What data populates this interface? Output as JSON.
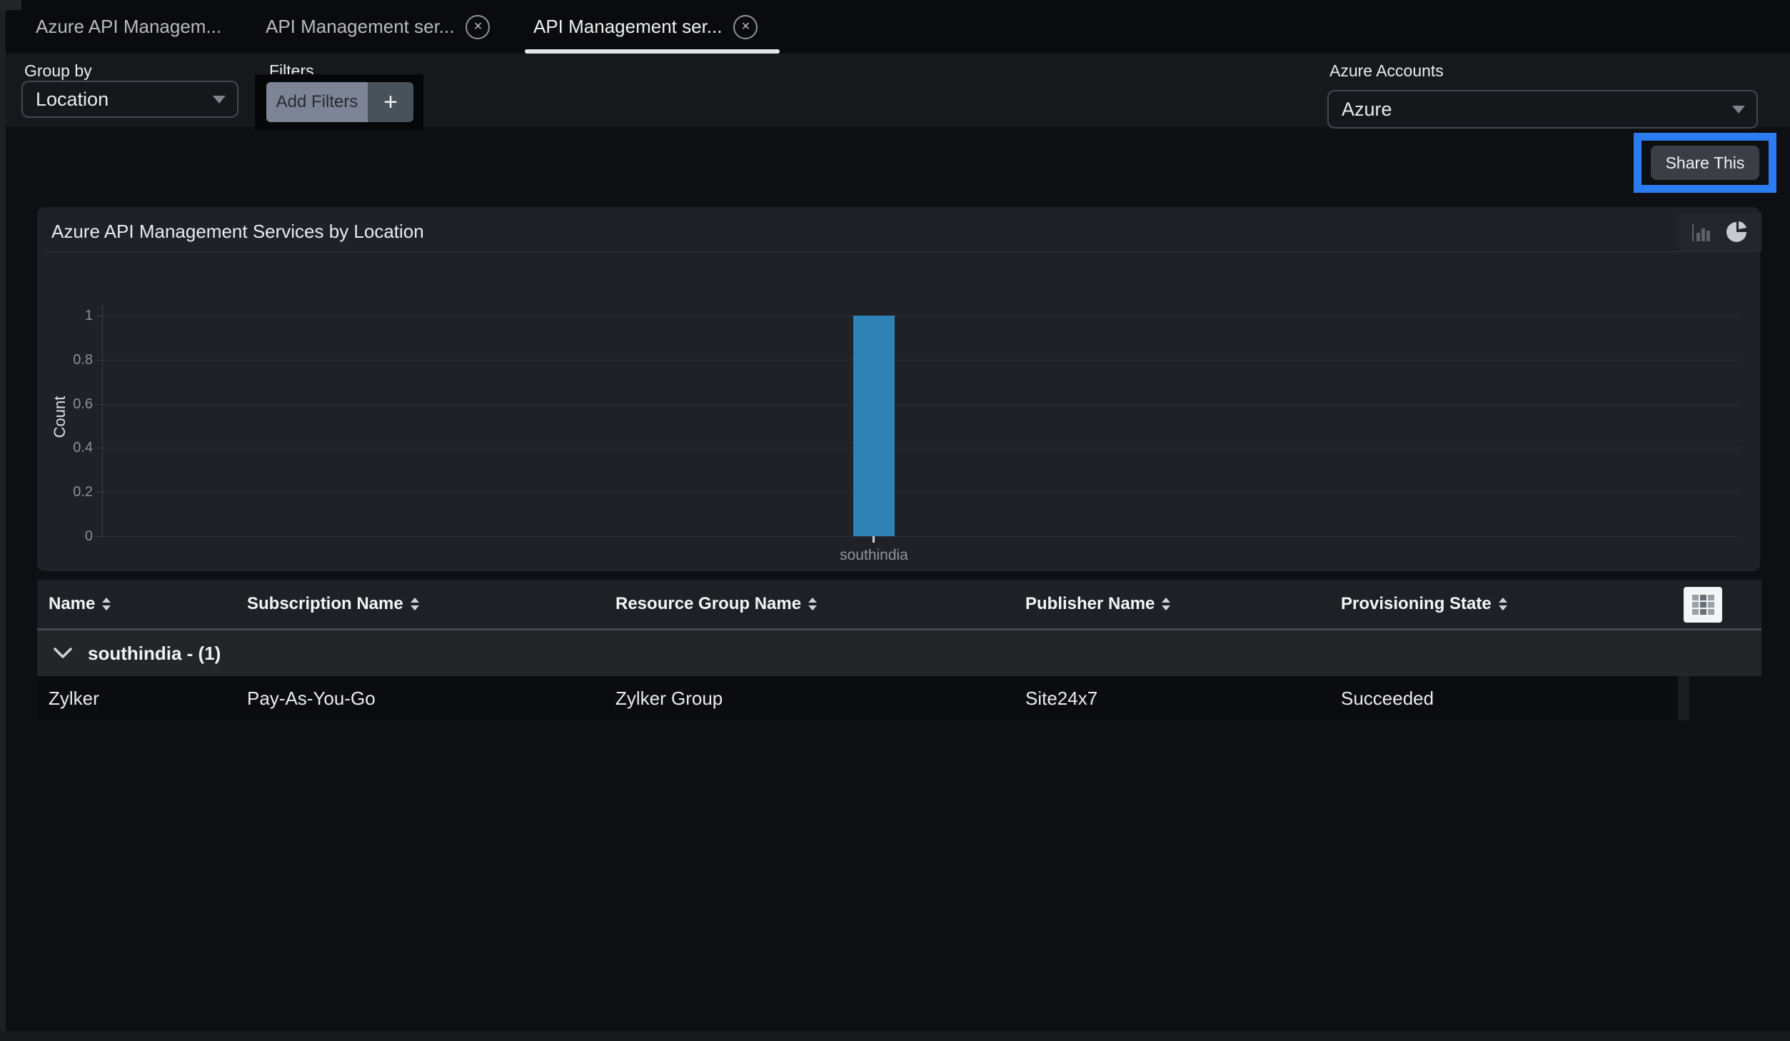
{
  "tabs": {
    "close_glyph": "×",
    "items": [
      {
        "label": "Azure API Managem...",
        "closable": false,
        "active": false
      },
      {
        "label": "API Management ser...",
        "closable": true,
        "active": false
      },
      {
        "label": "API Management ser...",
        "closable": true,
        "active": true
      }
    ]
  },
  "filters": {
    "group_by_label": "Group by",
    "group_by_value": "Location",
    "filters_label": "Filters",
    "add_filters_label": "Add Filters",
    "plus_glyph": "+",
    "accounts_label": "Azure Accounts",
    "accounts_value": "Azure"
  },
  "share": {
    "label": "Share This",
    "highlight_color": "#2b7bf2"
  },
  "panel": {
    "title": "Azure API Management Services by Location"
  },
  "chart_data": {
    "type": "bar",
    "title": "Azure API Management Services by Location",
    "categories": [
      "southindia"
    ],
    "values": [
      1
    ],
    "xlabel": "",
    "ylabel": "Count",
    "ylim": [
      0,
      1
    ],
    "yticks": [
      0,
      0.2,
      0.4,
      0.6,
      0.8,
      1
    ],
    "bar_color": "#2e82b6",
    "grid": true,
    "legend": false
  },
  "table": {
    "columns": [
      {
        "label": "Name"
      },
      {
        "label": "Subscription Name"
      },
      {
        "label": "Resource Group Name"
      },
      {
        "label": "Publisher Name"
      },
      {
        "label": "Provisioning State"
      }
    ],
    "group_label": "southindia - (1)",
    "rows": [
      [
        "Zylker",
        "Pay-As-You-Go",
        "Zylker Group",
        "Site24x7",
        "Succeeded"
      ]
    ]
  }
}
